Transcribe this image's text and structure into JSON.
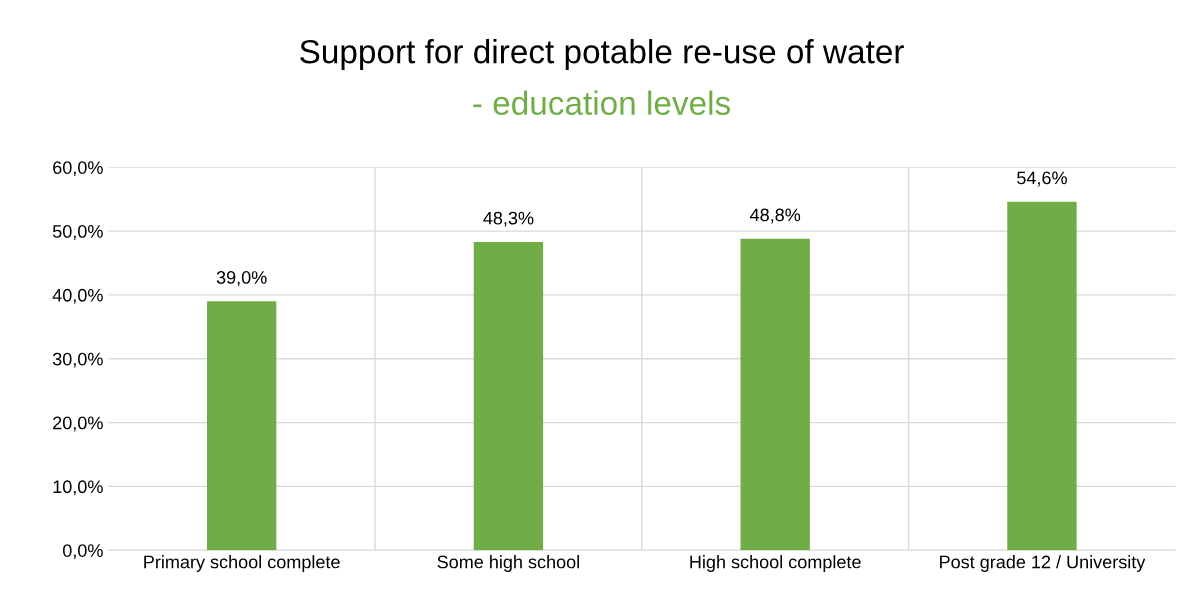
{
  "chart_data": {
    "type": "bar",
    "title": "Support for direct potable re-use of water",
    "subtitle": "- education levels",
    "categories": [
      "Primary school complete",
      "Some high school",
      "High school complete",
      "Post grade 12 / University"
    ],
    "values": [
      39.0,
      48.3,
      48.8,
      54.6
    ],
    "value_labels": [
      "39,0%",
      "48,3%",
      "48,8%",
      "54,6%"
    ],
    "color": "#70ad47",
    "ylim": [
      0,
      60
    ],
    "yticks": [
      {
        "value": 0,
        "label": "0,0%"
      },
      {
        "value": 10,
        "label": "10,0%"
      },
      {
        "value": 20,
        "label": "20,0%"
      },
      {
        "value": 30,
        "label": "30,0%"
      },
      {
        "value": 40,
        "label": "40,0%"
      },
      {
        "value": 50,
        "label": "50,0%"
      },
      {
        "value": 60,
        "label": "60,0%"
      }
    ],
    "grid": true,
    "legend": false
  }
}
